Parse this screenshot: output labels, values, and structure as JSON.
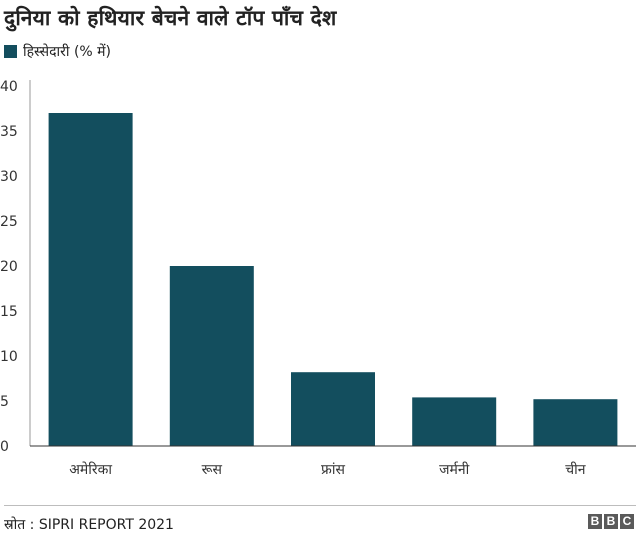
{
  "chart_data": {
    "type": "bar",
    "title": "दुनिया को हथियार बेचने वाले टॉप पाँच देश",
    "series": [
      {
        "name": "हिस्सेदारी (% में)",
        "values": [
          37,
          20,
          8.2,
          5.4,
          5.2
        ]
      }
    ],
    "categories": [
      "अमेरिका",
      "रूस",
      "फ्रांस",
      "जर्मनी",
      "चीन"
    ],
    "ylim": [
      0,
      40
    ],
    "yticks": [
      "0",
      "5",
      "10",
      "15",
      "20",
      "25",
      "30",
      "35",
      "40"
    ],
    "grid": false,
    "legend_position": "top-left",
    "bar_color": "#134e5e"
  },
  "footer": {
    "source": "स्रोत : SIPRI REPORT 2021",
    "logo_letters": [
      "B",
      "B",
      "C"
    ]
  }
}
